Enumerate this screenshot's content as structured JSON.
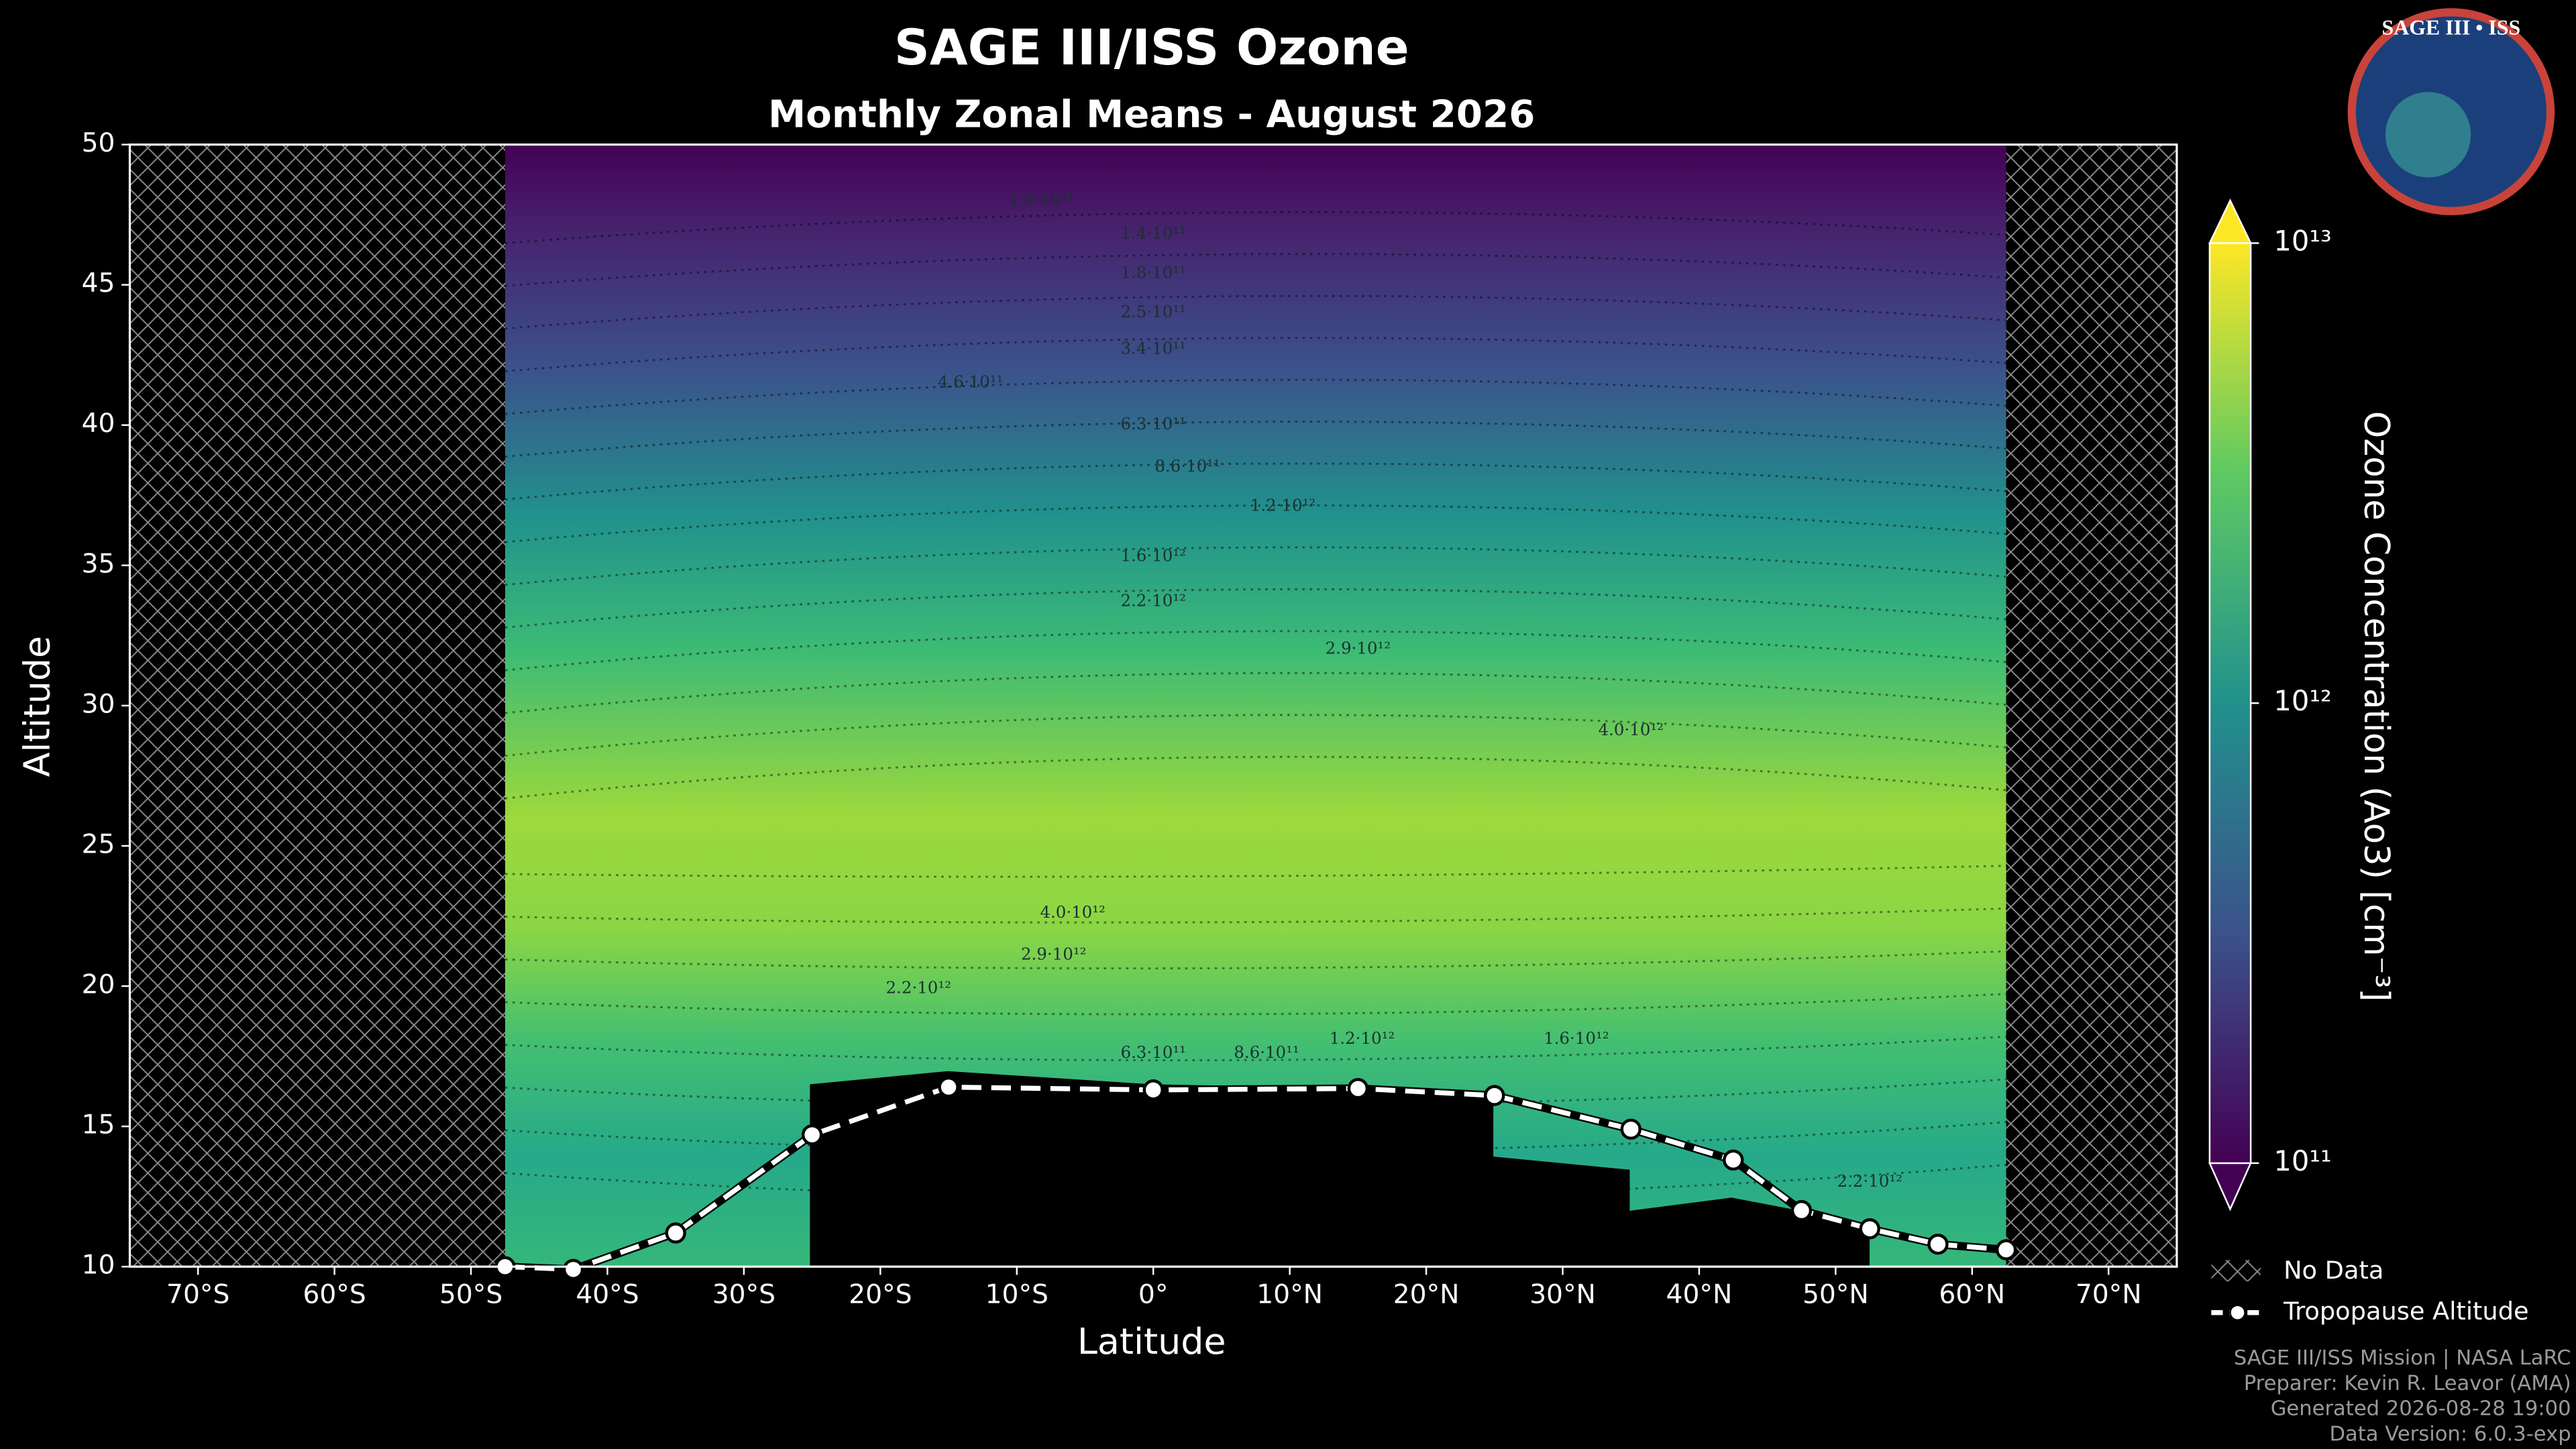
{
  "chart_data": {
    "type": "contour",
    "title": "SAGE III/ISS Ozone",
    "subtitle": "Monthly Zonal Means - August 2026",
    "x_label": "Latitude",
    "y_label": "Altitude",
    "xlim": [
      -75,
      75
    ],
    "ylim": [
      10,
      50
    ],
    "xticks": [
      {
        "value": -70,
        "label": "70°S"
      },
      {
        "value": -60,
        "label": "60°S"
      },
      {
        "value": -50,
        "label": "50°S"
      },
      {
        "value": -40,
        "label": "40°S"
      },
      {
        "value": -30,
        "label": "30°S"
      },
      {
        "value": -20,
        "label": "20°S"
      },
      {
        "value": -10,
        "label": "10°S"
      },
      {
        "value": 0,
        "label": "0°"
      },
      {
        "value": 10,
        "label": "10°N"
      },
      {
        "value": 20,
        "label": "20°N"
      },
      {
        "value": 30,
        "label": "30°N"
      },
      {
        "value": 40,
        "label": "40°N"
      },
      {
        "value": 50,
        "label": "50°N"
      },
      {
        "value": 60,
        "label": "60°N"
      },
      {
        "value": 70,
        "label": "70°N"
      }
    ],
    "yticks": [
      10,
      15,
      20,
      25,
      30,
      35,
      40,
      45,
      50
    ],
    "colorbar": {
      "label": "Ozone Concentration (Ao3) [cm⁻³]",
      "log": true,
      "lim": [
        100000000000.0,
        10000000000000.0
      ],
      "ticks": [
        {
          "value": 100000000000.0,
          "label": "10¹¹"
        },
        {
          "value": 1000000000000.0,
          "label": "10¹²"
        },
        {
          "value": 10000000000000.0,
          "label": "10¹³"
        }
      ]
    },
    "series": [
      {
        "name": "Tropopause Altitude",
        "color": "#ffffff",
        "x": [
          -47.5,
          -42.5,
          -35,
          -25,
          -15,
          0,
          15,
          25,
          35,
          42.5,
          47.5,
          52.5,
          57.5,
          62.5
        ],
        "y": [
          10.0,
          9.9,
          11.2,
          14.7,
          16.4,
          16.3,
          16.35,
          16.1,
          14.9,
          13.8,
          12.0,
          11.35,
          10.8,
          10.6
        ]
      }
    ],
    "no_data_label": "No Data",
    "contour_labels": [
      {
        "x": -8.2,
        "y": 48.0,
        "value": 100000000000.0,
        "label": "1.0·10¹¹"
      },
      {
        "x": 0,
        "y": 46.8,
        "value": 140000000000.0,
        "label": "1.4·10¹¹"
      },
      {
        "x": 0,
        "y": 45.4,
        "value": 180000000000.0,
        "label": "1.8·10¹¹"
      },
      {
        "x": 0,
        "y": 44.0,
        "value": 250000000000.0,
        "label": "2.5·10¹¹"
      },
      {
        "x": 0,
        "y": 42.7,
        "value": 340000000000.0,
        "label": "3.4·10¹¹"
      },
      {
        "x": -13.4,
        "y": 41.5,
        "value": 460000000000.0,
        "label": "4.6·10¹¹"
      },
      {
        "x": 0,
        "y": 40.0,
        "value": 630000000000.0,
        "label": "6.3·10¹¹"
      },
      {
        "x": 2.5,
        "y": 38.5,
        "value": 860000000000.0,
        "label": "8.6·10¹¹"
      },
      {
        "x": 9.5,
        "y": 37.1,
        "value": 1200000000000.0,
        "label": "1.2·10¹²"
      },
      {
        "x": 0,
        "y": 35.3,
        "value": 1600000000000.0,
        "label": "1.6·10¹²"
      },
      {
        "x": 0,
        "y": 33.7,
        "value": 2200000000000.0,
        "label": "2.2·10¹²"
      },
      {
        "x": 15,
        "y": 32.0,
        "value": 2900000000000.0,
        "label": "2.9·10¹²"
      },
      {
        "x": 35,
        "y": 29.1,
        "value": 4000000000000.0,
        "label": "4.0·10¹²"
      },
      {
        "x": -5.9,
        "y": 22.6,
        "value": 4000000000000.0,
        "label": "4.0·10¹²"
      },
      {
        "x": -7.3,
        "y": 21.1,
        "value": 2900000000000.0,
        "label": "2.9·10¹²"
      },
      {
        "x": -17.2,
        "y": 19.9,
        "value": 2200000000000.0,
        "label": "2.2·10¹²"
      },
      {
        "x": 0,
        "y": 17.6,
        "value": 630000000000.0,
        "label": "6.3·10¹¹"
      },
      {
        "x": 8.3,
        "y": 17.6,
        "value": 860000000000.0,
        "label": "8.6·10¹¹"
      },
      {
        "x": 15.3,
        "y": 18.1,
        "value": 1200000000000.0,
        "label": "1.2·10¹²"
      },
      {
        "x": 31,
        "y": 18.1,
        "value": 1600000000000.0,
        "label": "1.6·10¹²"
      },
      {
        "x": 52.5,
        "y": 13.0,
        "value": 2200000000000.0,
        "label": "2.2·10¹²"
      }
    ],
    "logo_title": "SAGE III • ISS",
    "footer": [
      "SAGE III/ISS Mission | NASA LaRC",
      "Preparer: Kevin R. Leavor (AMA)",
      "Generated 2026-08-28 19:00",
      "Data Version: 6.0.3-exp"
    ]
  }
}
